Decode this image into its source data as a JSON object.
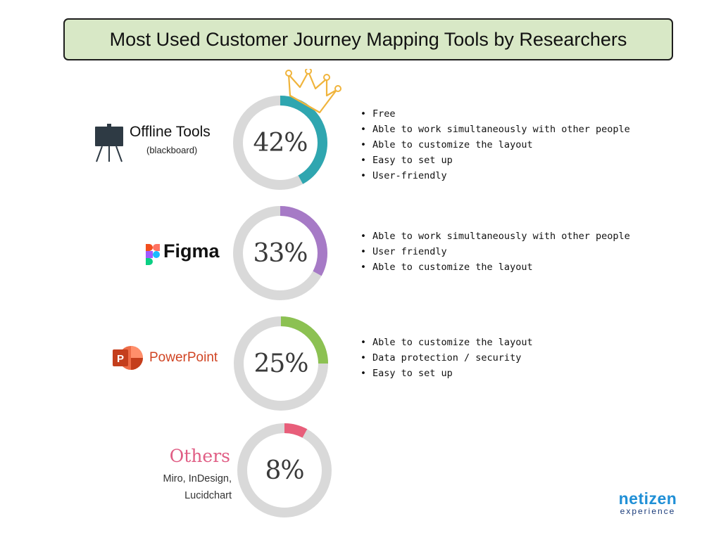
{
  "title": "Most Used Customer Journey Mapping Tools by Researchers",
  "chart_data": [
    {
      "type": "pie",
      "category": "Offline Tools",
      "sublabel": "(blackboard)",
      "value": 42,
      "value_label": "42%",
      "color": "#2fa6b0",
      "icon": "blackboard-easel-icon",
      "highlight_icon": "crown-icon",
      "bullets": [
        "Free",
        "Able to work simultaneously with other people",
        "Able to customize the layout",
        "Easy to set up",
        "User-friendly"
      ]
    },
    {
      "type": "pie",
      "category": "Figma",
      "value": 33,
      "value_label": "33%",
      "color": "#a67ac6",
      "icon": "figma-logo-icon",
      "bullets": [
        "Able to work simultaneously with other people",
        "User friendly",
        "Able to customize the layout"
      ]
    },
    {
      "type": "pie",
      "category": "PowerPoint",
      "value": 25,
      "value_label": "25%",
      "color": "#8cc152",
      "icon": "powerpoint-logo-icon",
      "bullets": [
        "Able to customize the layout",
        "Data protection / security",
        "Easy to set up"
      ]
    },
    {
      "type": "pie",
      "category": "Others",
      "sublabel": "Miro, InDesign, Lucidchart",
      "value": 8,
      "value_label": "8%",
      "color": "#e85e7a",
      "bullets": []
    }
  ],
  "track_color": "#d9d9d9",
  "logo": {
    "line1": "netizen",
    "line2": "experience"
  }
}
